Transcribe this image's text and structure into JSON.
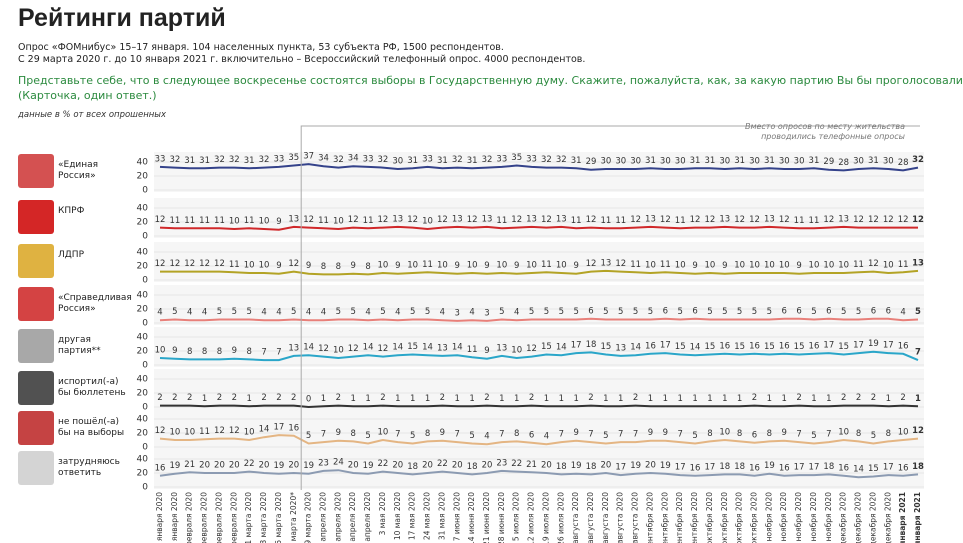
{
  "chart_data": {
    "type": "line",
    "title": "Рейтинги партий",
    "subtitle": [
      "Опрос «ФОМнибус» 15–17 января. 104 населенных пункта, 53 субъекта РФ, 1500 респондентов.",
      "С 29 марта 2020 г. до 10 января 2021 г. включительно – Всероссийский телефонный опрос. 4000 респондентов."
    ],
    "question": [
      "Представьте себе, что в следующее воскресенье состоятся выборы в Государственную думу. Скажите, пожалуйста, как, за какую партию Вы бы проголосовали?",
      "(Карточка, один ответ.)"
    ],
    "note": "данные в % от всех опрошенных",
    "annotation": "Вместо опросов по месту жительства проводились телефонные опросы",
    "x": [
      "19 января 2020",
      "26 января 2020",
      "2 февраля 2020",
      "9 февраля 2020",
      "16 февраля 2020",
      "23 февраля 2020",
      "1 марта 2020",
      "8 марта 2020",
      "15 марта 2020",
      "22 марта 2020*",
      "29 марта 2020",
      "5 апреля 2020",
      "12 апреля 2020",
      "19 апреля 2020",
      "26 апреля 2020",
      "3 мая 2020",
      "10 мая 2020",
      "17 мая 2020",
      "24 мая 2020",
      "31 мая 2020",
      "7 июня 2020",
      "14 июня 2020",
      "21 июня 2020",
      "28 июня 2020",
      "5 июля 2020",
      "12 июля 2020",
      "19 июля 2020",
      "26 июля 2020",
      "2 августа 2020",
      "9 августа 2020",
      "16 августа 2020",
      "23 августа 2020",
      "30 августа 2020",
      "6 сентября 2020",
      "13 сентября 2020",
      "20 сентября 2020",
      "27 сентября 2020",
      "4 октября 2020",
      "11 октября 2020",
      "18 октября 2020",
      "25 октября 2020",
      "1 ноября 2020",
      "8 ноября 2020",
      "15 ноября 2020",
      "22 ноября 2020",
      "29 ноября 2020",
      "6 декабря 2020",
      "13 декабря 2020",
      "20 декабря 2020",
      "27 декабря 2020",
      "10 января 2021",
      "17 января 2021"
    ],
    "ylim": [
      0,
      40
    ],
    "yticks": [
      0,
      20,
      40
    ],
    "grid": true,
    "series": [
      {
        "name": "«Единая Россия»",
        "color": "#34428a",
        "values": [
          33,
          32,
          31,
          31,
          32,
          32,
          31,
          32,
          33,
          35,
          37,
          34,
          32,
          34,
          33,
          32,
          30,
          31,
          33,
          31,
          32,
          31,
          32,
          33,
          35,
          33,
          32,
          32,
          31,
          29,
          30,
          30,
          30,
          31,
          30,
          30,
          31,
          31,
          30,
          31,
          30,
          31,
          30,
          30,
          31,
          29,
          28,
          30,
          31,
          30,
          28,
          32
        ]
      },
      {
        "name": "КПРФ",
        "color": "#d0282a",
        "values": [
          12,
          11,
          11,
          11,
          11,
          10,
          11,
          10,
          9,
          13,
          12,
          11,
          10,
          12,
          11,
          12,
          13,
          12,
          10,
          12,
          13,
          12,
          13,
          11,
          12,
          13,
          12,
          13,
          11,
          12,
          11,
          11,
          12,
          13,
          12,
          11,
          12,
          12,
          13,
          12,
          12,
          13,
          12,
          11,
          11,
          12,
          13,
          12,
          12,
          12,
          12,
          12
        ]
      },
      {
        "name": "ЛДПР",
        "color": "#b3a325",
        "values": [
          12,
          12,
          12,
          12,
          12,
          11,
          10,
          10,
          9,
          12,
          9,
          8,
          8,
          9,
          8,
          10,
          9,
          10,
          11,
          10,
          9,
          10,
          9,
          10,
          9,
          10,
          11,
          10,
          9,
          12,
          13,
          12,
          11,
          10,
          11,
          10,
          9,
          10,
          9,
          10,
          10,
          10,
          10,
          9,
          10,
          10,
          10,
          11,
          12,
          10,
          11,
          13
        ]
      },
      {
        "name": "«Справедливая Россия»",
        "color": "#e8807a",
        "values": [
          4,
          5,
          4,
          4,
          5,
          5,
          5,
          4,
          4,
          5,
          4,
          4,
          5,
          5,
          4,
          5,
          4,
          5,
          5,
          4,
          3,
          4,
          3,
          5,
          4,
          5,
          5,
          5,
          5,
          6,
          5,
          5,
          5,
          5,
          6,
          5,
          6,
          5,
          5,
          5,
          5,
          5,
          6,
          6,
          5,
          6,
          5,
          5,
          6,
          6,
          4,
          5
        ]
      },
      {
        "name": "другая партия**",
        "color": "#2aa6c9",
        "values": [
          10,
          9,
          8,
          8,
          8,
          9,
          8,
          7,
          7,
          13,
          14,
          12,
          10,
          12,
          14,
          12,
          14,
          15,
          14,
          13,
          14,
          11,
          9,
          13,
          10,
          12,
          15,
          14,
          17,
          18,
          15,
          13,
          14,
          16,
          17,
          15,
          14,
          15,
          16,
          15,
          16,
          15,
          16,
          15,
          16,
          17,
          15,
          17,
          19,
          17,
          16,
          7
        ]
      },
      {
        "name": "испортил(-а) бы бюллетень",
        "color": "#333333",
        "values": [
          2,
          2,
          2,
          1,
          2,
          2,
          1,
          2,
          2,
          2,
          0,
          1,
          2,
          1,
          1,
          2,
          1,
          1,
          1,
          2,
          1,
          1,
          2,
          1,
          1,
          2,
          1,
          1,
          1,
          2,
          1,
          1,
          2,
          1,
          1,
          1,
          1,
          1,
          1,
          1,
          2,
          1,
          1,
          2,
          1,
          1,
          2,
          2,
          2,
          1,
          2,
          1
        ]
      },
      {
        "name": "не пошёл(-а) бы на выборы",
        "color": "#e4b583",
        "values": [
          12,
          10,
          10,
          11,
          12,
          12,
          10,
          14,
          17,
          16,
          5,
          7,
          9,
          8,
          5,
          10,
          7,
          5,
          8,
          9,
          7,
          5,
          4,
          7,
          8,
          6,
          4,
          7,
          9,
          7,
          5,
          7,
          7,
          9,
          9,
          7,
          5,
          8,
          10,
          8,
          6,
          8,
          9,
          7,
          5,
          7,
          10,
          8,
          5,
          8,
          10,
          12
        ]
      },
      {
        "name": "затрудняюсь ответить",
        "color": "#8c9bb2",
        "values": [
          16,
          19,
          21,
          20,
          20,
          20,
          22,
          20,
          19,
          20,
          19,
          23,
          24,
          20,
          19,
          22,
          20,
          18,
          20,
          22,
          20,
          18,
          20,
          23,
          22,
          21,
          20,
          18,
          19,
          18,
          20,
          17,
          19,
          20,
          19,
          17,
          16,
          17,
          18,
          18,
          16,
          19,
          16,
          17,
          17,
          18,
          16,
          14,
          15,
          17,
          16,
          18
        ]
      }
    ]
  }
}
